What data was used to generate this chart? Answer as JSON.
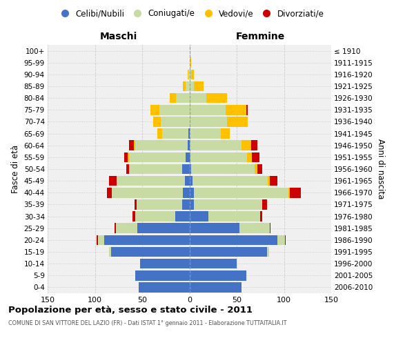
{
  "age_groups": [
    "0-4",
    "5-9",
    "10-14",
    "15-19",
    "20-24",
    "25-29",
    "30-34",
    "35-39",
    "40-44",
    "45-49",
    "50-54",
    "55-59",
    "60-64",
    "65-69",
    "70-74",
    "75-79",
    "80-84",
    "85-89",
    "90-94",
    "95-99",
    "100+"
  ],
  "birth_years": [
    "2006-2010",
    "2001-2005",
    "1996-2000",
    "1991-1995",
    "1986-1990",
    "1981-1985",
    "1976-1980",
    "1971-1975",
    "1966-1970",
    "1961-1965",
    "1956-1960",
    "1951-1955",
    "1946-1950",
    "1941-1945",
    "1936-1940",
    "1931-1935",
    "1926-1930",
    "1921-1925",
    "1916-1920",
    "1911-1915",
    "≤ 1910"
  ],
  "maschi_celibe": [
    54,
    57,
    52,
    83,
    90,
    55,
    15,
    8,
    7,
    5,
    8,
    4,
    2,
    1,
    0,
    0,
    0,
    0,
    0,
    0,
    0
  ],
  "maschi_coniugato": [
    0,
    0,
    0,
    2,
    7,
    23,
    42,
    48,
    75,
    72,
    55,
    60,
    55,
    28,
    30,
    32,
    14,
    4,
    1,
    0,
    0
  ],
  "maschi_vedovo": [
    0,
    0,
    0,
    0,
    0,
    0,
    0,
    0,
    0,
    0,
    1,
    1,
    2,
    5,
    8,
    9,
    7,
    3,
    1,
    0,
    0
  ],
  "maschi_divorziato": [
    0,
    0,
    0,
    0,
    1,
    1,
    3,
    2,
    5,
    8,
    3,
    4,
    5,
    0,
    0,
    0,
    0,
    0,
    0,
    0,
    0
  ],
  "femmine_celibe": [
    55,
    60,
    50,
    82,
    93,
    53,
    20,
    5,
    5,
    3,
    2,
    1,
    0,
    0,
    0,
    0,
    0,
    0,
    0,
    0,
    0
  ],
  "femmine_coniugato": [
    0,
    0,
    0,
    2,
    8,
    32,
    55,
    72,
    100,
    80,
    67,
    60,
    55,
    33,
    40,
    38,
    18,
    5,
    2,
    1,
    0
  ],
  "femmine_vedovo": [
    0,
    0,
    0,
    0,
    0,
    0,
    0,
    0,
    1,
    2,
    3,
    5,
    10,
    10,
    22,
    22,
    22,
    10,
    3,
    1,
    0
  ],
  "femmine_divorziato": [
    0,
    0,
    0,
    0,
    1,
    1,
    2,
    5,
    12,
    8,
    5,
    8,
    7,
    0,
    0,
    2,
    0,
    0,
    0,
    0,
    0
  ],
  "colors": {
    "celibe": "#4472C4",
    "coniugato": "#c8dba4",
    "vedovo": "#FFC000",
    "divorziato": "#CC0000"
  },
  "legend_labels": [
    "Celibi/Nubili",
    "Coniugati/e",
    "Vedovi/e",
    "Divorziati/e"
  ],
  "xlim": 150,
  "title": "Popolazione per età, sesso e stato civile - 2011",
  "subtitle": "COMUNE DI SAN VITTORE DEL LAZIO (FR) - Dati ISTAT 1° gennaio 2011 - Elaborazione TUTTAITALIA.IT",
  "label_maschi": "Maschi",
  "label_femmine": "Femmine",
  "ylabel_left": "Fasce di età",
  "ylabel_right": "Anni di nascita",
  "bg_color": "#ffffff",
  "plot_bg_color": "#f0f0f0",
  "grid_color": "#cccccc"
}
